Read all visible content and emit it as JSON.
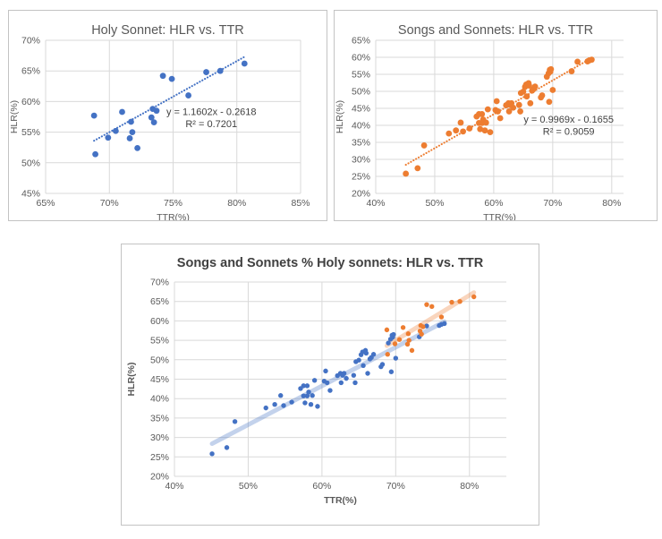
{
  "colors": {
    "blue": "#4472C4",
    "orange": "#ED7D31",
    "grid": "#D9D9D9",
    "axis_text": "#595959",
    "title_text": "#595959",
    "bold_title_text": "#404040",
    "equation_text": "#404040",
    "chart_border": "#C3C3C3"
  },
  "chart_data": [
    {
      "type": "scatter",
      "title": "Holy Sonnet: HLR vs. TTR",
      "title_bold": false,
      "xlabel": "TTR(%)",
      "ylabel": "HLR(%)",
      "xlim": [
        65,
        85
      ],
      "ylim": [
        45,
        70
      ],
      "xticks": [
        65,
        70,
        75,
        80,
        85
      ],
      "yticks": [
        45,
        50,
        55,
        60,
        65,
        70
      ],
      "tick_suffix": "%",
      "series": [
        {
          "name": "Holy Sonnet",
          "color": "#4472C4",
          "points": [
            [
              68.8,
              57.7
            ],
            [
              68.9,
              51.4
            ],
            [
              69.9,
              54.1
            ],
            [
              70.5,
              55.2
            ],
            [
              71.0,
              58.3
            ],
            [
              71.7,
              56.7
            ],
            [
              71.6,
              54.0
            ],
            [
              71.8,
              55.0
            ],
            [
              72.2,
              52.4
            ],
            [
              73.3,
              57.4
            ],
            [
              73.5,
              56.6
            ],
            [
              73.4,
              58.8
            ],
            [
              73.7,
              58.5
            ],
            [
              74.2,
              64.2
            ],
            [
              74.9,
              63.7
            ],
            [
              76.2,
              61.0
            ],
            [
              77.6,
              64.8
            ],
            [
              78.7,
              65.0
            ],
            [
              80.6,
              66.2
            ]
          ]
        }
      ],
      "trendlines": [
        {
          "style": "dotted",
          "color": "#4472C4",
          "x1": 68.8,
          "y1": 53.6,
          "x2": 80.6,
          "y2": 67.3,
          "label_lines": [
            "y = 1.1602x - 0.2618",
            "R² = 0.7201"
          ],
          "label_pos": [
            78.0,
            57.8
          ]
        }
      ]
    },
    {
      "type": "scatter",
      "title": "Songs and Sonnets: HLR vs. TTR",
      "title_bold": false,
      "xlabel": "TTR(%)",
      "ylabel": "HLR(%)",
      "xlim": [
        40,
        82
      ],
      "ylim": [
        20,
        65
      ],
      "xticks": [
        40,
        50,
        60,
        70,
        80
      ],
      "yticks": [
        20,
        25,
        30,
        35,
        40,
        45,
        50,
        55,
        60,
        65
      ],
      "tick_suffix": "%",
      "series": [
        {
          "name": "Songs and Sonnets",
          "color": "#ED7D31",
          "points": [
            [
              45.1,
              25.8
            ],
            [
              47.1,
              27.4
            ],
            [
              48.2,
              34.1
            ],
            [
              52.4,
              37.6
            ],
            [
              53.6,
              38.5
            ],
            [
              54.4,
              40.8
            ],
            [
              54.8,
              38.2
            ],
            [
              55.9,
              39.1
            ],
            [
              57.1,
              42.6
            ],
            [
              57.5,
              43.3
            ],
            [
              57.5,
              40.7
            ],
            [
              57.7,
              38.9
            ],
            [
              58.0,
              43.3
            ],
            [
              58.0,
              40.7
            ],
            [
              58.2,
              41.7
            ],
            [
              58.5,
              38.5
            ],
            [
              58.7,
              40.8
            ],
            [
              59.0,
              44.7
            ],
            [
              59.4,
              38.0
            ],
            [
              60.3,
              44.5
            ],
            [
              60.5,
              47.1
            ],
            [
              60.7,
              44.1
            ],
            [
              61.1,
              42.1
            ],
            [
              62.1,
              45.9
            ],
            [
              62.5,
              46.5
            ],
            [
              62.6,
              44.1
            ],
            [
              62.8,
              46.0
            ],
            [
              63.0,
              46.5
            ],
            [
              63.3,
              45.2
            ],
            [
              64.3,
              46.0
            ],
            [
              64.5,
              44.1
            ],
            [
              64.6,
              49.5
            ],
            [
              65.0,
              49.9
            ],
            [
              65.3,
              51.3
            ],
            [
              65.5,
              52.0
            ],
            [
              65.6,
              48.5
            ],
            [
              65.9,
              52.4
            ],
            [
              66.0,
              51.7
            ],
            [
              66.2,
              46.5
            ],
            [
              66.5,
              50.2
            ],
            [
              66.7,
              50.6
            ],
            [
              67.0,
              51.4
            ],
            [
              68.0,
              48.2
            ],
            [
              68.2,
              48.8
            ],
            [
              69.0,
              54.3
            ],
            [
              69.3,
              55.3
            ],
            [
              69.5,
              56.3
            ],
            [
              69.6,
              55.8
            ],
            [
              69.7,
              56.5
            ],
            [
              69.4,
              46.9
            ],
            [
              70.0,
              50.4
            ],
            [
              73.2,
              55.9
            ],
            [
              74.2,
              58.7
            ],
            [
              75.9,
              58.8
            ],
            [
              76.2,
              59.1
            ],
            [
              76.6,
              59.3
            ]
          ]
        }
      ],
      "trendlines": [
        {
          "style": "dotted",
          "color": "#ED7D31",
          "x1": 45.1,
          "y1": 28.4,
          "x2": 76.6,
          "y2": 59.8,
          "label_lines": [
            "y = 0.9969x - 0.1655",
            "R² = 0.9059"
          ],
          "label_pos": [
            72.7,
            40.8
          ]
        }
      ]
    },
    {
      "type": "scatter",
      "title": "Songs and Sonnets % Holy sonnets: HLR vs. TTR",
      "title_bold": true,
      "xlabel": "TTR(%)",
      "ylabel": "HLR(%)",
      "xlim": [
        40,
        85
      ],
      "ylim": [
        20,
        70
      ],
      "xticks": [
        40,
        50,
        60,
        70,
        80
      ],
      "yticks": [
        20,
        25,
        30,
        35,
        40,
        45,
        50,
        55,
        60,
        65,
        70
      ],
      "tick_suffix": "%",
      "series": [
        {
          "name": "Songs and Sonnets",
          "color": "#4472C4",
          "points": [
            [
              45.1,
              25.8
            ],
            [
              47.1,
              27.4
            ],
            [
              48.2,
              34.1
            ],
            [
              52.4,
              37.6
            ],
            [
              53.6,
              38.5
            ],
            [
              54.4,
              40.8
            ],
            [
              54.8,
              38.2
            ],
            [
              55.9,
              39.1
            ],
            [
              57.1,
              42.6
            ],
            [
              57.5,
              43.3
            ],
            [
              57.5,
              40.7
            ],
            [
              57.7,
              38.9
            ],
            [
              58.0,
              43.3
            ],
            [
              58.0,
              40.7
            ],
            [
              58.2,
              41.7
            ],
            [
              58.5,
              38.5
            ],
            [
              58.7,
              40.8
            ],
            [
              59.0,
              44.7
            ],
            [
              59.4,
              38.0
            ],
            [
              60.3,
              44.5
            ],
            [
              60.5,
              47.1
            ],
            [
              60.7,
              44.1
            ],
            [
              61.1,
              42.1
            ],
            [
              62.1,
              45.9
            ],
            [
              62.5,
              46.5
            ],
            [
              62.6,
              44.1
            ],
            [
              62.8,
              46.0
            ],
            [
              63.0,
              46.5
            ],
            [
              63.3,
              45.2
            ],
            [
              64.3,
              46.0
            ],
            [
              64.5,
              44.1
            ],
            [
              64.6,
              49.5
            ],
            [
              65.0,
              49.9
            ],
            [
              65.3,
              51.3
            ],
            [
              65.5,
              52.0
            ],
            [
              65.6,
              48.5
            ],
            [
              65.9,
              52.4
            ],
            [
              66.0,
              51.7
            ],
            [
              66.2,
              46.5
            ],
            [
              66.5,
              50.2
            ],
            [
              66.7,
              50.6
            ],
            [
              67.0,
              51.4
            ],
            [
              68.0,
              48.2
            ],
            [
              68.2,
              48.8
            ],
            [
              69.0,
              54.3
            ],
            [
              69.3,
              55.3
            ],
            [
              69.5,
              56.3
            ],
            [
              69.6,
              55.8
            ],
            [
              69.7,
              56.5
            ],
            [
              69.4,
              46.9
            ],
            [
              70.0,
              50.4
            ],
            [
              73.2,
              55.9
            ],
            [
              74.2,
              58.7
            ],
            [
              75.9,
              58.8
            ],
            [
              76.2,
              59.1
            ],
            [
              76.6,
              59.3
            ]
          ]
        },
        {
          "name": "Holy Sonnet",
          "color": "#ED7D31",
          "points": [
            [
              68.8,
              57.7
            ],
            [
              68.9,
              51.4
            ],
            [
              69.9,
              54.1
            ],
            [
              70.5,
              55.2
            ],
            [
              71.0,
              58.3
            ],
            [
              71.7,
              56.7
            ],
            [
              71.6,
              54.0
            ],
            [
              71.8,
              55.0
            ],
            [
              72.2,
              52.4
            ],
            [
              73.3,
              57.4
            ],
            [
              73.5,
              56.6
            ],
            [
              73.4,
              58.8
            ],
            [
              73.7,
              58.5
            ],
            [
              74.2,
              64.2
            ],
            [
              74.9,
              63.7
            ],
            [
              76.2,
              61.0
            ],
            [
              77.6,
              64.8
            ],
            [
              78.7,
              65.0
            ],
            [
              80.6,
              66.2
            ]
          ]
        }
      ],
      "trendlines": [
        {
          "style": "thick",
          "color": "#4472C4",
          "x1": 45.1,
          "y1": 28.4,
          "x2": 76.6,
          "y2": 59.8
        },
        {
          "style": "thick",
          "color": "#ED7D31",
          "x1": 68.8,
          "y1": 53.6,
          "x2": 80.6,
          "y2": 67.3
        }
      ]
    }
  ]
}
